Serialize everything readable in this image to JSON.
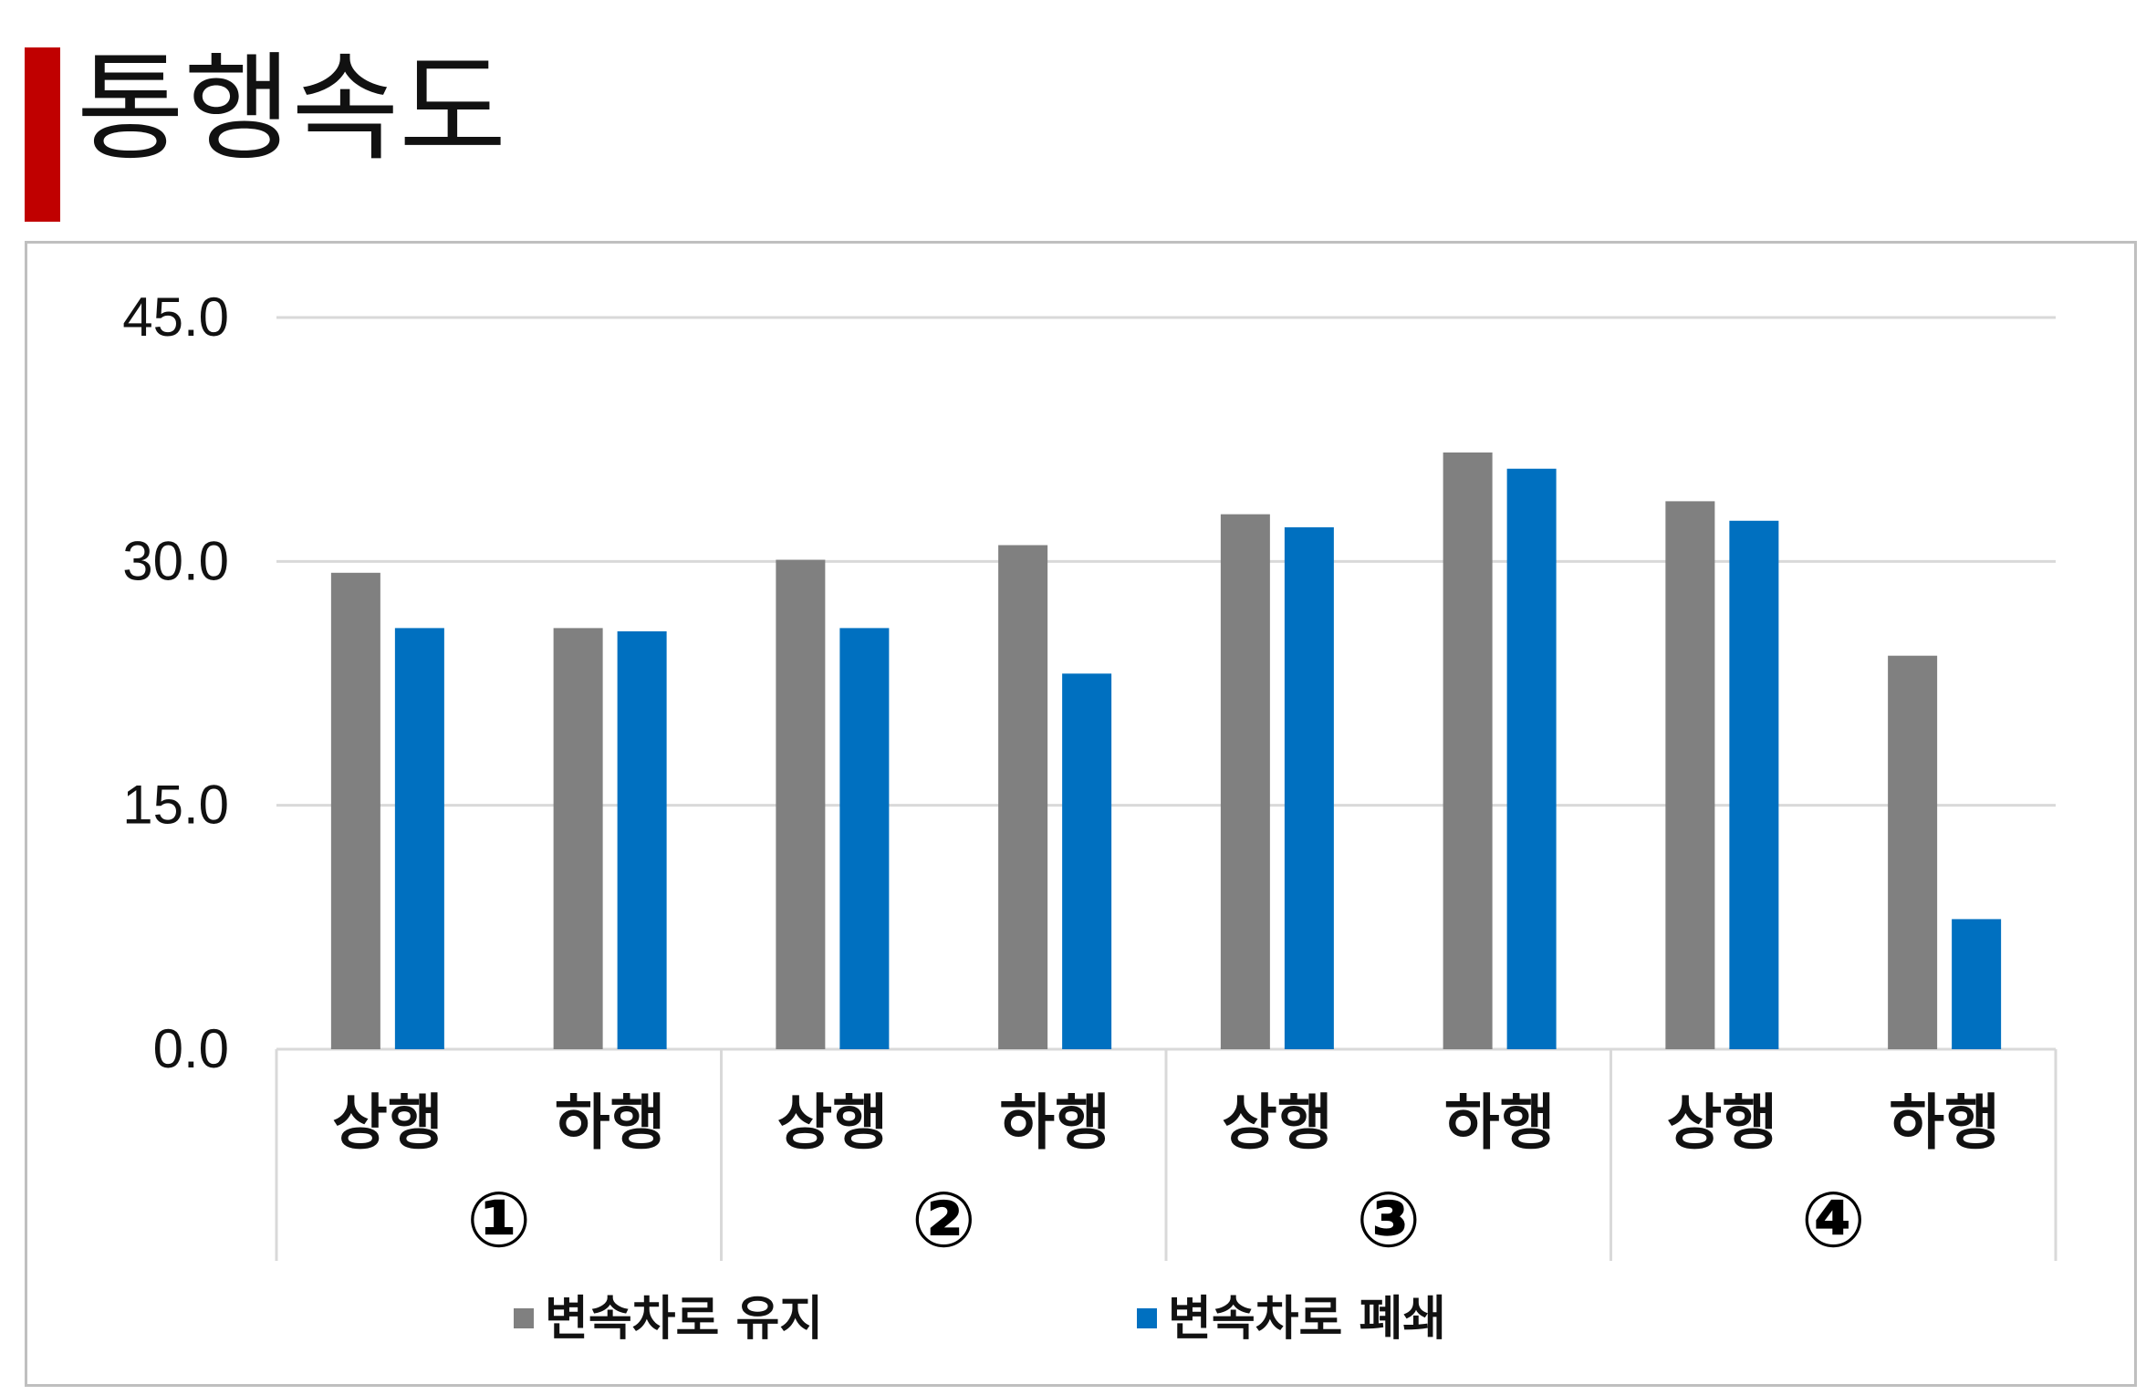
{
  "page": {
    "title": "통행속도",
    "accent_color": "#c00000"
  },
  "chart_data": {
    "type": "bar",
    "title": "",
    "xlabel": "",
    "ylabel": "",
    "ylim": [
      0,
      45
    ],
    "yticks": [
      "0.0",
      "15.0",
      "30.0",
      "45.0"
    ],
    "ytick_values": [
      0,
      15,
      30,
      45
    ],
    "grid": true,
    "legend_position": "bottom",
    "categories": [
      "상행",
      "하행",
      "상행",
      "하행",
      "상행",
      "하행",
      "상행",
      "하행"
    ],
    "groups": [
      "①",
      "②",
      "③",
      "④"
    ],
    "series": [
      {
        "name": "변속차로 유지",
        "color": "#808080",
        "values": [
          29.3,
          25.9,
          30.1,
          31.0,
          32.9,
          36.7,
          33.7,
          24.2
        ]
      },
      {
        "name": "변속차로 폐쇄",
        "color": "#0070c0",
        "values": [
          25.9,
          25.7,
          25.9,
          23.1,
          32.1,
          35.7,
          32.5,
          8.0
        ]
      }
    ]
  }
}
